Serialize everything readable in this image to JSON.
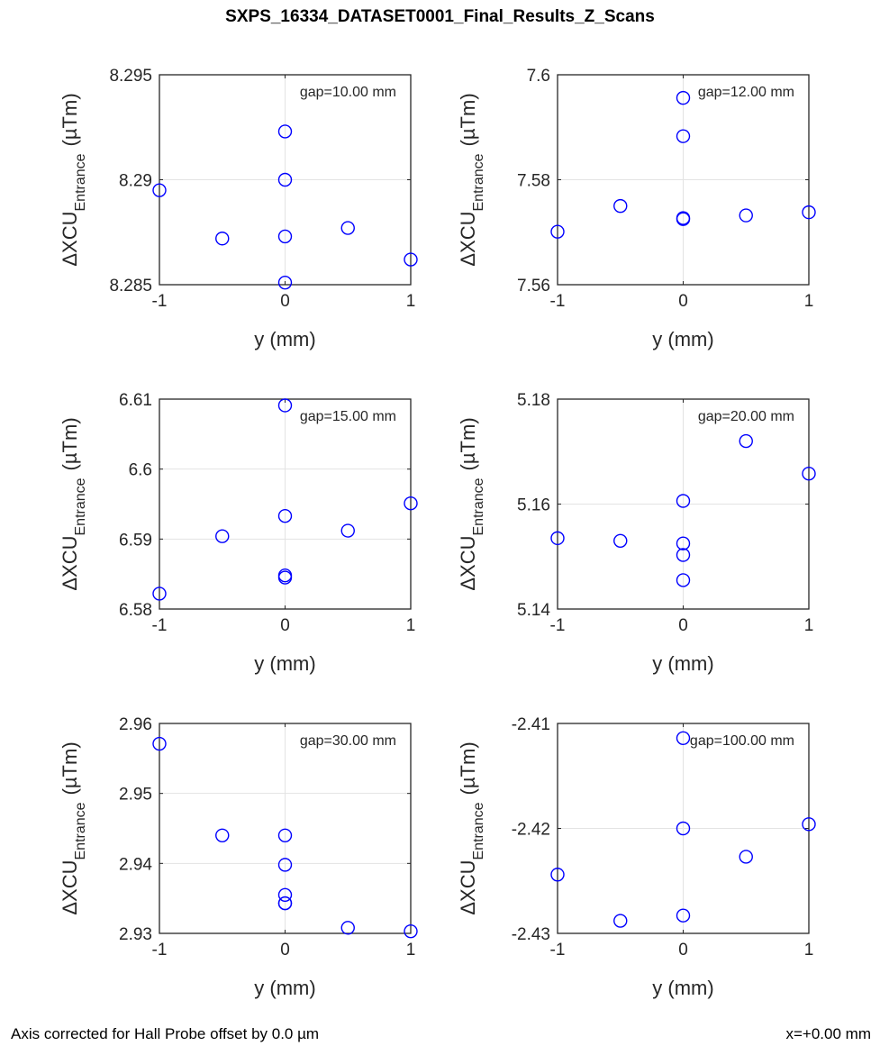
{
  "page": {
    "title": "SXPS_16334_DATASET0001_Final_Results_Z_Scans",
    "footer_left": "Axis corrected for Hall Probe offset by 0.0 µm",
    "footer_right": "x=+0.00 mm"
  },
  "chart_data": [
    {
      "type": "scatter",
      "annotation": "gap=10.00 mm",
      "xlabel": "y (mm)",
      "ylabel": {
        "prefix": "ΔXCU",
        "subscript": "Entrance",
        "unit": "(µTm)"
      },
      "xlim": [
        -1,
        1
      ],
      "ylim": [
        8.285,
        8.295
      ],
      "xticks": [
        -1,
        0,
        1
      ],
      "yticks": [
        8.285,
        8.29,
        8.295
      ],
      "yticklabels": [
        "8.285",
        "8.29",
        "8.295"
      ],
      "grid": true,
      "marker_color": "#0000ff",
      "x": [
        -1,
        -0.5,
        0,
        0,
        0,
        0,
        0.5,
        1
      ],
      "y": [
        8.2895,
        8.2872,
        8.2923,
        8.29,
        8.2873,
        8.2851,
        8.2877,
        8.2862
      ]
    },
    {
      "type": "scatter",
      "annotation": "gap=12.00 mm",
      "xlabel": "y (mm)",
      "ylabel": {
        "prefix": "ΔXCU",
        "subscript": "Entrance",
        "unit": "(µTm)"
      },
      "xlim": [
        -1,
        1
      ],
      "ylim": [
        7.56,
        7.6
      ],
      "xticks": [
        -1,
        0,
        1
      ],
      "yticks": [
        7.56,
        7.58,
        7.6
      ],
      "yticklabels": [
        "7.56",
        "7.58",
        "7.6"
      ],
      "grid": true,
      "marker_color": "#0000ff",
      "x": [
        -1,
        -0.5,
        0,
        0,
        0,
        0,
        0.5,
        1
      ],
      "y": [
        7.5701,
        7.575,
        7.5956,
        7.5883,
        7.5727,
        7.5725,
        7.5732,
        7.5738
      ]
    },
    {
      "type": "scatter",
      "annotation": "gap=15.00 mm",
      "xlabel": "y (mm)",
      "ylabel": {
        "prefix": "ΔXCU",
        "subscript": "Entrance",
        "unit": "(µTm)"
      },
      "xlim": [
        -1,
        1
      ],
      "ylim": [
        6.58,
        6.61
      ],
      "xticks": [
        -1,
        0,
        1
      ],
      "yticks": [
        6.58,
        6.59,
        6.6,
        6.61
      ],
      "yticklabels": [
        "6.58",
        "6.59",
        "6.6",
        "6.61"
      ],
      "grid": true,
      "marker_color": "#0000ff",
      "x": [
        -1,
        -0.5,
        0,
        0,
        0,
        0,
        0.5,
        1
      ],
      "y": [
        6.5822,
        6.5904,
        6.6091,
        6.5933,
        6.5848,
        6.5845,
        6.5912,
        6.5951
      ]
    },
    {
      "type": "scatter",
      "annotation": "gap=20.00 mm",
      "xlabel": "y (mm)",
      "ylabel": {
        "prefix": "ΔXCU",
        "subscript": "Entrance",
        "unit": "(µTm)"
      },
      "xlim": [
        -1,
        1
      ],
      "ylim": [
        5.14,
        5.18
      ],
      "xticks": [
        -1,
        0,
        1
      ],
      "yticks": [
        5.14,
        5.16,
        5.18
      ],
      "yticklabels": [
        "5.14",
        "5.16",
        "5.18"
      ],
      "grid": true,
      "marker_color": "#0000ff",
      "x": [
        -1,
        -0.5,
        0,
        0,
        0,
        0,
        0.5,
        1
      ],
      "y": [
        5.1535,
        5.153,
        5.1606,
        5.1525,
        5.1503,
        5.1455,
        5.172,
        5.1658
      ]
    },
    {
      "type": "scatter",
      "annotation": "gap=30.00 mm",
      "xlabel": "y (mm)",
      "ylabel": {
        "prefix": "ΔXCU",
        "subscript": "Entrance",
        "unit": "(µTm)"
      },
      "xlim": [
        -1,
        1
      ],
      "ylim": [
        2.93,
        2.96
      ],
      "xticks": [
        -1,
        0,
        1
      ],
      "yticks": [
        2.93,
        2.94,
        2.95,
        2.96
      ],
      "yticklabels": [
        "2.93",
        "2.94",
        "2.95",
        "2.96"
      ],
      "grid": true,
      "marker_color": "#0000ff",
      "x": [
        -1,
        -0.5,
        0,
        0,
        0,
        0,
        0,
        0.5,
        1
      ],
      "y": [
        2.9571,
        2.944,
        2.944,
        2.9398,
        2.9355,
        2.9343,
        2.9343,
        2.9308,
        2.9303
      ]
    },
    {
      "type": "scatter",
      "annotation": "gap=100.00 mm",
      "xlabel": "y (mm)",
      "ylabel": {
        "prefix": "ΔXCU",
        "subscript": "Entrance",
        "unit": "(µTm)"
      },
      "xlim": [
        -1,
        1
      ],
      "ylim": [
        -2.43,
        -2.41
      ],
      "xticks": [
        -1,
        0,
        1
      ],
      "yticks": [
        -2.43,
        -2.42,
        -2.41
      ],
      "yticklabels": [
        "-2.43",
        "-2.42",
        "-2.41"
      ],
      "grid": true,
      "marker_color": "#0000ff",
      "x": [
        -1,
        -0.5,
        0,
        0,
        0,
        0.5,
        1
      ],
      "y": [
        -2.4244,
        -2.4288,
        -2.4114,
        -2.42,
        -2.4283,
        -2.4227,
        -2.4196
      ]
    }
  ]
}
